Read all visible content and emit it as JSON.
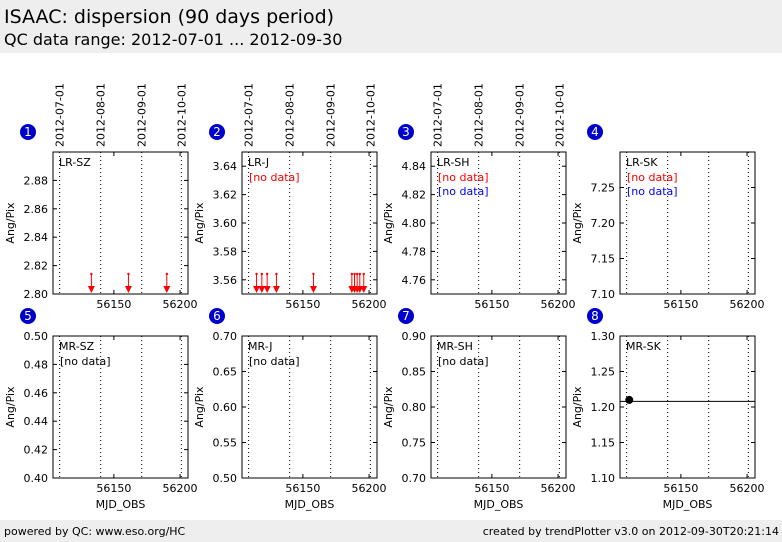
{
  "header": {
    "title": "ISAAC: dispersion (90 days period)",
    "subtitle": "QC data range: 2012-07-01 ... 2012-09-30"
  },
  "footer": {
    "left": "powered by QC: www.eso.org/HC",
    "right": "created by trendPlotter v3.0 on 2012-09-30T20:21:14"
  },
  "colors": {
    "badge": "#0000cc",
    "no_data_red": "#ff0000",
    "no_data_blue": "#0000ff",
    "marker_red": "#ff0000",
    "marker_black": "#000000"
  },
  "chart_data": [
    {
      "type": "scatter",
      "panel_number": "1",
      "label": "LR-SZ",
      "date_ticks": [
        "2012-07-01",
        "2012-08-01",
        "2012-09-01",
        "2012-10-01"
      ],
      "date_ticks_mjd": [
        56109,
        56140,
        56171,
        56201
      ],
      "xlim": [
        56104,
        56206
      ],
      "xticks": [
        56150,
        56200
      ],
      "ylim": [
        2.8,
        2.9
      ],
      "yticks": [
        "2.80",
        "2.82",
        "2.84",
        "2.86",
        "2.88"
      ],
      "ylabel": "Ang/Pix",
      "xlabel": "",
      "notes": [],
      "lower_limit_markers": [
        56133,
        56161,
        56190
      ]
    },
    {
      "type": "scatter",
      "panel_number": "2",
      "label": "LR-J",
      "date_ticks": [
        "2012-07-01",
        "2012-08-01",
        "2012-09-01",
        "2012-10-01"
      ],
      "date_ticks_mjd": [
        56109,
        56140,
        56171,
        56201
      ],
      "xlim": [
        56104,
        56206
      ],
      "xticks": [
        56150,
        56200
      ],
      "ylim": [
        3.55,
        3.65
      ],
      "yticks": [
        "3.56",
        "3.58",
        "3.60",
        "3.62",
        "3.64"
      ],
      "ylabel": "Ang/Pix",
      "xlabel": "",
      "notes": [
        {
          "text": "[no data]",
          "color": "red"
        }
      ],
      "lower_limit_markers": [
        56115,
        56119,
        56123,
        56130,
        56158,
        56187,
        56189,
        56191,
        56193,
        56196
      ]
    },
    {
      "type": "scatter",
      "panel_number": "3",
      "label": "LR-SH",
      "date_ticks": [
        "2012-07-01",
        "2012-08-01",
        "2012-09-01",
        "2012-10-01"
      ],
      "date_ticks_mjd": [
        56109,
        56140,
        56171,
        56201
      ],
      "xlim": [
        56104,
        56206
      ],
      "xticks": [
        56150,
        56200
      ],
      "ylim": [
        4.75,
        4.85
      ],
      "yticks": [
        "4.76",
        "4.78",
        "4.80",
        "4.82",
        "4.84"
      ],
      "ylabel": "Ang/Pix",
      "xlabel": "",
      "notes": [
        {
          "text": "[no data]",
          "color": "red"
        },
        {
          "text": "[no data]",
          "color": "blue"
        }
      ],
      "lower_limit_markers": []
    },
    {
      "type": "scatter",
      "panel_number": "4",
      "label": "LR-SK",
      "date_ticks": [],
      "date_ticks_mjd": [],
      "xlim": [
        56104,
        56206
      ],
      "xticks": [
        56150,
        56200
      ],
      "ylim": [
        7.1,
        7.3
      ],
      "yticks": [
        "7.10",
        "7.15",
        "7.20",
        "7.25"
      ],
      "ylabel": "Ang/Pix",
      "xlabel": "",
      "notes": [
        {
          "text": "[no data]",
          "color": "red"
        },
        {
          "text": "[no data]",
          "color": "blue"
        }
      ],
      "lower_limit_markers": []
    },
    {
      "type": "scatter",
      "panel_number": "5",
      "label": "MR-SZ",
      "xlim": [
        56104,
        56206
      ],
      "xticks": [
        56150,
        56200
      ],
      "ylim": [
        0.4,
        0.5
      ],
      "yticks": [
        "0.40",
        "0.42",
        "0.44",
        "0.46",
        "0.48",
        "0.50"
      ],
      "ylabel": "Ang/Pix",
      "xlabel": "MJD_OBS",
      "notes": [
        {
          "text": "[no data]",
          "color": "black"
        }
      ],
      "lower_limit_markers": []
    },
    {
      "type": "scatter",
      "panel_number": "6",
      "label": "MR-J",
      "xlim": [
        56104,
        56206
      ],
      "xticks": [
        56150,
        56200
      ],
      "ylim": [
        0.5,
        0.7
      ],
      "yticks": [
        "0.50",
        "0.55",
        "0.60",
        "0.65",
        "0.70"
      ],
      "ylabel": "Ang/Pix",
      "xlabel": "MJD_OBS",
      "notes": [
        {
          "text": "[no data]",
          "color": "black"
        }
      ],
      "lower_limit_markers": []
    },
    {
      "type": "scatter",
      "panel_number": "7",
      "label": "MR-SH",
      "xlim": [
        56104,
        56206
      ],
      "xticks": [
        56150,
        56200
      ],
      "ylim": [
        0.7,
        0.9
      ],
      "yticks": [
        "0.70",
        "0.75",
        "0.80",
        "0.85",
        "0.90"
      ],
      "ylabel": "Ang/Pix",
      "xlabel": "MJD_OBS",
      "notes": [
        {
          "text": "[no data]",
          "color": "black"
        }
      ],
      "lower_limit_markers": []
    },
    {
      "type": "scatter",
      "panel_number": "8",
      "label": "MR-SK",
      "xlim": [
        56104,
        56206
      ],
      "xticks": [
        56150,
        56200
      ],
      "ylim": [
        1.1,
        1.3
      ],
      "yticks": [
        "1.10",
        "1.15",
        "1.20",
        "1.25",
        "1.30"
      ],
      "ylabel": "Ang/Pix",
      "xlabel": "MJD_OBS",
      "notes": [],
      "lower_limit_markers": [],
      "points": [
        {
          "x": 56111,
          "y": 1.21
        }
      ],
      "reference_line": 1.208
    }
  ]
}
